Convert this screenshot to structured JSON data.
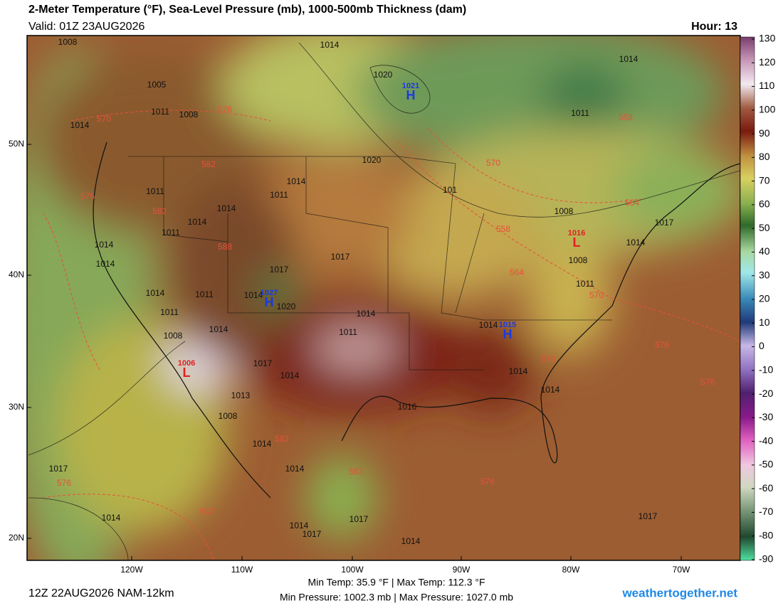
{
  "header": {
    "title": "2-Meter Temperature (°F), Sea-Level Pressure (mb), 1000-500mb Thickness (dam)",
    "valid": "Valid: 01Z 23AUG2026",
    "hour": "Hour: 13"
  },
  "map": {
    "lat_labels": [
      "50N",
      "40N",
      "30N",
      "20N"
    ],
    "lon_labels": [
      "120W",
      "110W",
      "100W",
      "90W",
      "80W",
      "70W"
    ],
    "isobar_labels": [
      "1008",
      "1005",
      "1011",
      "1008",
      "1014",
      "1020",
      "1014",
      "1014",
      "1011",
      "1020",
      "1011",
      "1011",
      "1014",
      "1014",
      "1014",
      "1011",
      "1014",
      "1014",
      "1017",
      "1017",
      "1014",
      "1020",
      "1011",
      "1014",
      "1011",
      "1014",
      "1011",
      "1014",
      "1008",
      "1017",
      "1014",
      "1013",
      "1008",
      "1016",
      "1014",
      "1014",
      "1017",
      "1014",
      "1017",
      "1014",
      "1017",
      "1014",
      "1017",
      "1008",
      "1011",
      "1014",
      "1017",
      "1008",
      "1014",
      "1014",
      "1014",
      "101"
    ],
    "thickness_labels": [
      "576",
      "570",
      "582",
      "582",
      "588",
      "576",
      "582",
      "582",
      "576",
      "582",
      "576",
      "576",
      "576",
      "576",
      "570",
      "564",
      "558",
      "564",
      "570",
      "558"
    ],
    "highs": [
      {
        "symbol": "H",
        "pressure": "1021"
      },
      {
        "symbol": "H",
        "pressure": "1027"
      },
      {
        "symbol": "H",
        "pressure": "1015"
      }
    ],
    "lows": [
      {
        "symbol": "L",
        "pressure": "1006"
      },
      {
        "symbol": "L",
        "pressure": "1016"
      }
    ]
  },
  "colorbar": {
    "ticks": [
      130,
      120,
      110,
      100,
      90,
      80,
      70,
      60,
      50,
      40,
      30,
      20,
      10,
      0,
      -10,
      -20,
      -30,
      -40,
      -50,
      -60,
      -70,
      -80,
      -90
    ]
  },
  "footer": {
    "run": "12Z 22AUG2026 NAM-12km",
    "temp_range": "Min Temp: 35.9 °F | Max Temp: 112.3 °F",
    "pressure_range": "Min Pressure: 1002.3 mb | Max Pressure: 1027.0 mb",
    "site": "weathertogether.net"
  }
}
